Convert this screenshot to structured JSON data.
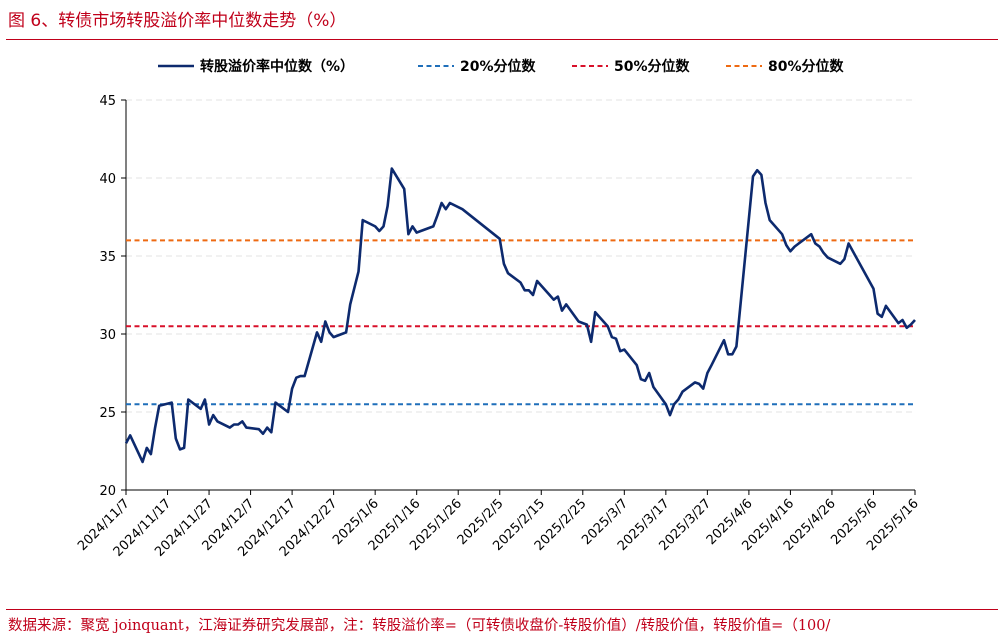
{
  "header": {
    "title": "图 6、转债市场转股溢价率中位数走势（%）"
  },
  "footer": {
    "source": "数据来源：聚宽 joinquant，江海证券研究发展部，注：转股溢价率=（可转债收盘价-转股价值）/转股价值，转股价值=（100/"
  },
  "colors": {
    "main_line": "#0d2a6e",
    "p20": "#1f6fba",
    "p50": "#d8102a",
    "p80": "#ee6a12",
    "accent": "#c0001a"
  },
  "chart_data": {
    "type": "line",
    "title": "",
    "xlabel": "",
    "ylabel": "",
    "ylim": [
      20,
      45
    ],
    "yticks": [
      "20",
      "25",
      "30",
      "35",
      "40",
      "45"
    ],
    "x_range": [
      "2024-11-07",
      "2025-05-16"
    ],
    "xtick_labels": [
      "2024/11/7",
      "2024/11/17",
      "2024/11/27",
      "2024/12/7",
      "2024/12/17",
      "2024/12/27",
      "2025/1/6",
      "2025/1/16",
      "2025/1/26",
      "2025/2/5",
      "2025/2/15",
      "2025/2/25",
      "2025/3/7",
      "2025/3/17",
      "2025/3/27",
      "2025/4/6",
      "2025/4/16",
      "2025/4/26",
      "2025/5/6",
      "2025/5/16"
    ],
    "legend_position": "top",
    "grid": "horizontal-dashed",
    "series": [
      {
        "name": "转股溢价率中位数（%）",
        "style": "solid",
        "x": [
          "2024-11-07",
          "2024-11-08",
          "2024-11-11",
          "2024-11-12",
          "2024-11-13",
          "2024-11-14",
          "2024-11-15",
          "2024-11-18",
          "2024-11-19",
          "2024-11-20",
          "2024-11-21",
          "2024-11-22",
          "2024-11-25",
          "2024-11-26",
          "2024-11-27",
          "2024-11-28",
          "2024-11-29",
          "2024-12-02",
          "2024-12-03",
          "2024-12-04",
          "2024-12-05",
          "2024-12-06",
          "2024-12-09",
          "2024-12-10",
          "2024-12-11",
          "2024-12-12",
          "2024-12-13",
          "2024-12-16",
          "2024-12-17",
          "2024-12-18",
          "2024-12-19",
          "2024-12-20",
          "2024-12-23",
          "2024-12-24",
          "2024-12-25",
          "2024-12-26",
          "2024-12-27",
          "2024-12-30",
          "2024-12-31",
          "2025-01-02",
          "2025-01-03",
          "2025-01-06",
          "2025-01-07",
          "2025-01-08",
          "2025-01-09",
          "2025-01-10",
          "2025-01-13",
          "2025-01-14",
          "2025-01-15",
          "2025-01-16",
          "2025-01-17",
          "2025-01-20",
          "2025-01-21",
          "2025-01-22",
          "2025-01-23",
          "2025-01-24",
          "2025-01-27",
          "2025-02-05",
          "2025-02-06",
          "2025-02-07",
          "2025-02-10",
          "2025-02-11",
          "2025-02-12",
          "2025-02-13",
          "2025-02-14",
          "2025-02-17",
          "2025-02-18",
          "2025-02-19",
          "2025-02-20",
          "2025-02-21",
          "2025-02-24",
          "2025-02-25",
          "2025-02-26",
          "2025-02-27",
          "2025-02-28",
          "2025-03-03",
          "2025-03-04",
          "2025-03-05",
          "2025-03-06",
          "2025-03-07",
          "2025-03-10",
          "2025-03-11",
          "2025-03-12",
          "2025-03-13",
          "2025-03-14",
          "2025-03-17",
          "2025-03-18",
          "2025-03-19",
          "2025-03-20",
          "2025-03-21",
          "2025-03-24",
          "2025-03-25",
          "2025-03-26",
          "2025-03-27",
          "2025-03-28",
          "2025-03-31",
          "2025-04-01",
          "2025-04-02",
          "2025-04-03",
          "2025-04-07",
          "2025-04-08",
          "2025-04-09",
          "2025-04-10",
          "2025-04-11",
          "2025-04-14",
          "2025-04-15",
          "2025-04-16",
          "2025-04-17",
          "2025-04-18",
          "2025-04-21",
          "2025-04-22",
          "2025-04-23",
          "2025-04-24",
          "2025-04-25",
          "2025-04-28",
          "2025-04-29",
          "2025-04-30",
          "2025-05-06",
          "2025-05-07",
          "2025-05-08",
          "2025-05-09",
          "2025-05-12",
          "2025-05-13",
          "2025-05-14",
          "2025-05-15",
          "2025-05-16"
        ],
        "values": [
          23.0,
          23.5,
          21.8,
          22.7,
          22.3,
          24.0,
          25.4,
          25.6,
          23.3,
          22.6,
          22.7,
          25.8,
          25.2,
          25.8,
          24.2,
          24.8,
          24.4,
          24.0,
          24.2,
          24.2,
          24.4,
          24.0,
          23.9,
          23.6,
          24.0,
          23.7,
          25.6,
          25.0,
          26.5,
          27.2,
          27.3,
          27.3,
          30.1,
          29.5,
          30.8,
          30.1,
          29.8,
          30.1,
          31.9,
          34.0,
          37.3,
          36.9,
          36.6,
          36.9,
          38.2,
          40.6,
          39.3,
          36.4,
          36.9,
          36.5,
          36.6,
          36.9,
          37.6,
          38.4,
          38.0,
          38.4,
          38.0,
          36.1,
          34.5,
          33.9,
          33.3,
          32.8,
          32.8,
          32.5,
          33.4,
          32.5,
          32.2,
          32.4,
          31.5,
          31.9,
          30.8,
          30.7,
          30.6,
          29.5,
          31.4,
          30.5,
          29.8,
          29.7,
          28.9,
          29.0,
          28.0,
          27.1,
          27.0,
          27.5,
          26.6,
          25.5,
          24.8,
          25.5,
          25.8,
          26.3,
          26.9,
          26.8,
          26.5,
          27.5,
          28.0,
          29.6,
          28.7,
          28.7,
          29.2,
          40.1,
          40.5,
          40.2,
          38.4,
          37.3,
          36.4,
          35.7,
          35.3,
          35.6,
          35.8,
          36.4,
          35.8,
          35.6,
          35.2,
          34.9,
          34.5,
          34.8,
          35.8,
          32.9,
          31.3,
          31.1,
          31.8,
          30.7,
          30.9,
          30.4,
          30.6,
          30.9
        ]
      },
      {
        "name": "20%分位数",
        "style": "dashed",
        "value": 25.5
      },
      {
        "name": "50%分位数",
        "style": "dashed",
        "value": 30.5
      },
      {
        "name": "80%分位数",
        "style": "dashed",
        "value": 36.0
      }
    ]
  }
}
